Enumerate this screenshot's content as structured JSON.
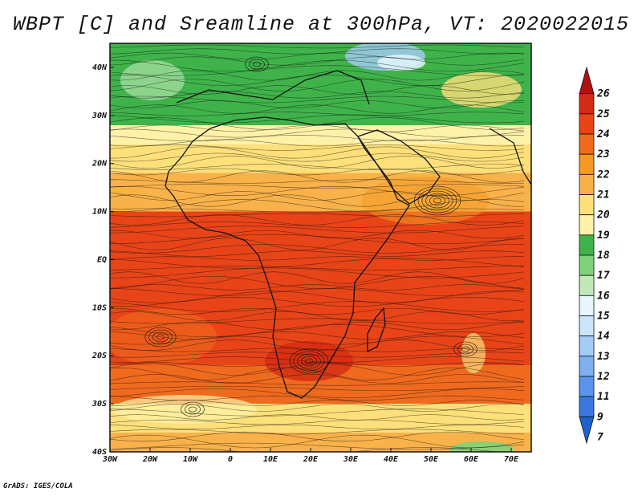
{
  "title": "WBPT [C] and Sreamline at 300hPa, VT: 2020022015",
  "footer": "GrADS: IGES/COLA",
  "map": {
    "lon_range": [
      -30,
      75
    ],
    "lat_range": [
      -40,
      45
    ],
    "lon_ticks": [
      "30W",
      "20W",
      "10W",
      "0",
      "10E",
      "20E",
      "30E",
      "40E",
      "50E",
      "60E",
      "70E"
    ],
    "lat_ticks": [
      "40S",
      "30S",
      "20S",
      "10S",
      "EQ",
      "10N",
      "20N",
      "30N",
      "40N"
    ],
    "lon_tick_values": [
      -30,
      -20,
      -10,
      0,
      10,
      20,
      30,
      40,
      50,
      60,
      70
    ],
    "lat_tick_values": [
      -40,
      -30,
      -20,
      -10,
      0,
      10,
      20,
      30,
      40
    ]
  },
  "colorbar": {
    "levels": [
      "7",
      "9",
      "11",
      "12",
      "13",
      "14",
      "15",
      "16",
      "17",
      "18",
      "19",
      "20",
      "21",
      "22",
      "23",
      "24",
      "25",
      "26"
    ],
    "colors": [
      "#2060d0",
      "#3a78e0",
      "#5a94ec",
      "#7fb0f2",
      "#a5ccf6",
      "#cbe6fa",
      "#e6f7ff",
      "#bfeab8",
      "#7fd27a",
      "#3fb34a",
      "#fff2a8",
      "#fde07a",
      "#f9b24a",
      "#f49a24",
      "#f06a1e",
      "#e84418",
      "#d42a12",
      "#b01010"
    ]
  },
  "zones": [
    {
      "lat_min": 28,
      "lat_max": 45,
      "color": "#3fb34a"
    },
    {
      "lat_min": 24,
      "lat_max": 28,
      "color": "#fff2a8"
    },
    {
      "lat_min": 18,
      "lat_max": 24,
      "color": "#fde07a"
    },
    {
      "lat_min": 10,
      "lat_max": 18,
      "color": "#f9b24a"
    },
    {
      "lat_min": -22,
      "lat_max": 10,
      "color": "#e84418"
    },
    {
      "lat_min": -30,
      "lat_max": -22,
      "color": "#f06a1e"
    },
    {
      "lat_min": -36,
      "lat_max": -30,
      "color": "#fde07a"
    },
    {
      "lat_min": -40,
      "lat_max": -36,
      "color": "#f9b24a"
    }
  ]
}
